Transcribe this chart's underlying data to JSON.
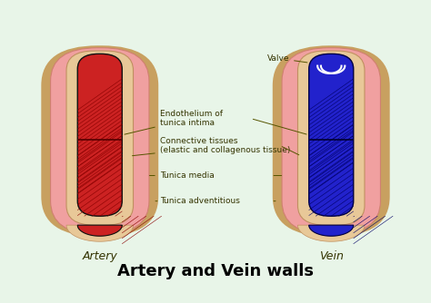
{
  "bg_color": "#e8f5e8",
  "title": "Artery and Vein walls",
  "title_fontsize": 13,
  "title_fontstyle": "bold",
  "artery_label": "Artery",
  "vein_label": "Vein",
  "labels": {
    "valve": "Valve",
    "endothelium": "Endothelium of\ntunica intima",
    "connective": "Connective tissues\n(elastic and collagenous tissue)",
    "tunica_media": "Tunica media",
    "tunica_adv": "Tunica adventitious"
  },
  "colors": {
    "outer_wall": "#c8a060",
    "tunica_adv": "#e8b888",
    "tunica_media": "#f0a0a0",
    "connective": "#e8c898",
    "artery_lumen": "#cc2222",
    "vein_lumen": "#2222cc",
    "endothelium_line": "#880000",
    "valve_color": "#ccccee",
    "label_color": "#333300",
    "line_color": "#555500"
  }
}
